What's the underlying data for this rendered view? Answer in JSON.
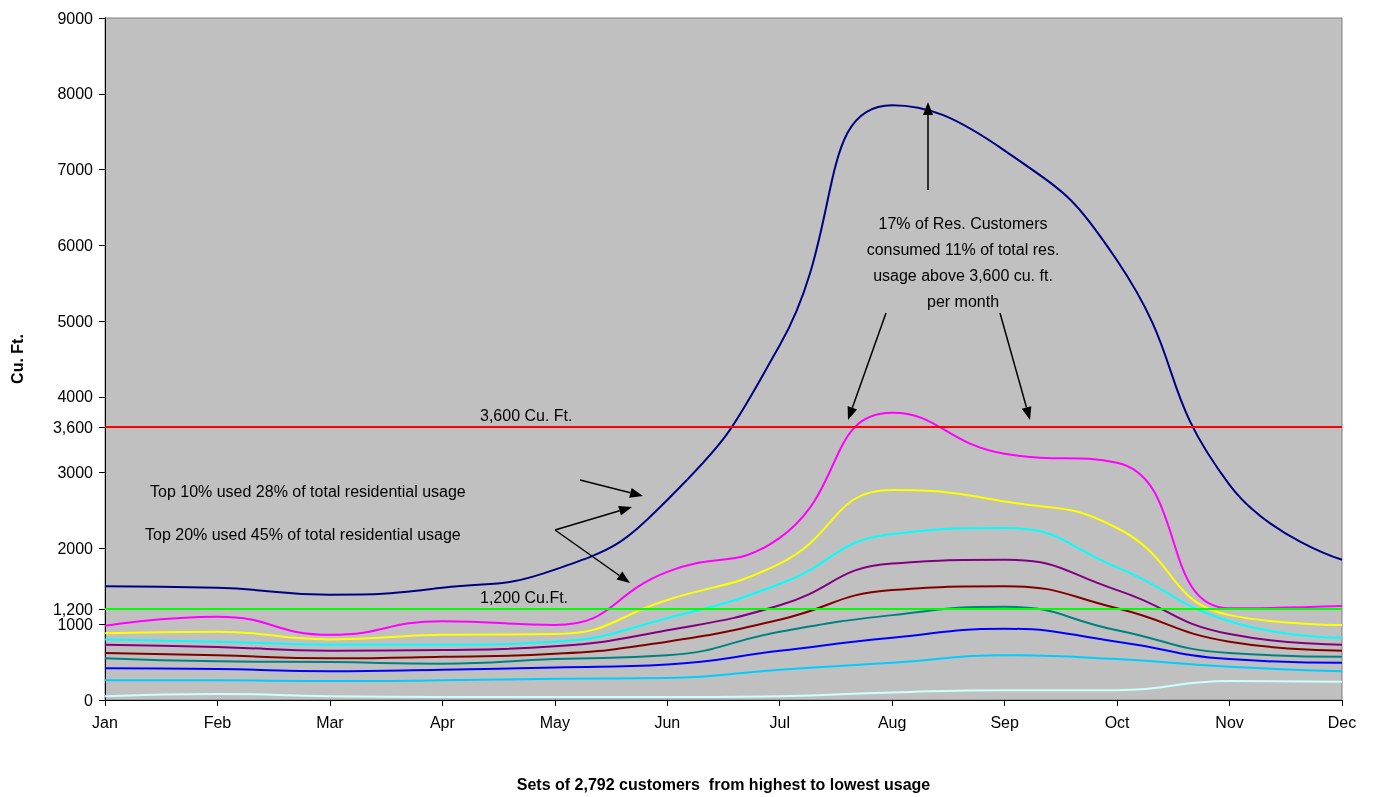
{
  "chart_data": {
    "type": "line",
    "xlabel": "Sets of 2,792 customers  from highest to lowest usage",
    "ylabel": "Cu. Ft.",
    "categories": [
      "Jan",
      "Feb",
      "Mar",
      "Apr",
      "May",
      "Jun",
      "Jul",
      "Aug",
      "Sep",
      "Oct",
      "Nov",
      "Dec"
    ],
    "series": [
      {
        "color": "#000080",
        "values": [
          1500,
          1480,
          1390,
          1480,
          1720,
          2640,
          4680,
          7850,
          7250,
          5800,
          2840,
          1850
        ]
      },
      {
        "color": "#ff00ff",
        "values": [
          980,
          1100,
          860,
          1040,
          990,
          1690,
          2140,
          3790,
          3250,
          3130,
          1210,
          1240
        ]
      },
      {
        "color": "#ffff00",
        "values": [
          880,
          900,
          800,
          860,
          870,
          1320,
          1800,
          2770,
          2620,
          2270,
          1120,
          990
        ]
      },
      {
        "color": "#00ffff",
        "values": [
          800,
          770,
          730,
          730,
          770,
          1080,
          1530,
          2190,
          2270,
          1750,
          1040,
          820
        ]
      },
      {
        "color": "#800080",
        "values": [
          730,
          700,
          650,
          660,
          710,
          920,
          1250,
          1800,
          1850,
          1450,
          870,
          730
        ]
      },
      {
        "color": "#800000",
        "values": [
          620,
          590,
          550,
          570,
          610,
          770,
          1060,
          1450,
          1500,
          1210,
          770,
          650
        ]
      },
      {
        "color": "#008080",
        "values": [
          550,
          510,
          500,
          480,
          540,
          590,
          900,
          1120,
          1230,
          920,
          620,
          570
        ]
      },
      {
        "color": "#0000ff",
        "values": [
          420,
          410,
          380,
          400,
          430,
          470,
          650,
          820,
          940,
          770,
          540,
          490
        ]
      },
      {
        "color": "#00ccff",
        "values": [
          260,
          260,
          250,
          260,
          280,
          290,
          400,
          490,
          590,
          540,
          440,
          380
        ]
      },
      {
        "color": "#ccffff",
        "values": [
          50,
          80,
          50,
          40,
          40,
          40,
          50,
          100,
          130,
          130,
          250,
          240
        ]
      }
    ],
    "ylim": [
      0,
      9000
    ],
    "yticks": [
      0,
      1000,
      {
        "value": 1200,
        "label": "1,200"
      },
      2000,
      3000,
      {
        "value": 3600,
        "label": "3,600"
      },
      4000,
      5000,
      6000,
      7000,
      8000,
      9000
    ],
    "ref_lines": [
      {
        "axis": "y",
        "value": 3600,
        "label": "3,600 Cu. Ft.",
        "color": "#ff0000"
      },
      {
        "axis": "y",
        "value": 1200,
        "label": "1,200 Cu.Ft.",
        "color": "#00ff00"
      }
    ],
    "annotations": [
      "17% of Res. Customers\nconsumed 11% of total res.\nusage above 3,600 cu. ft.\nper month",
      "Top 10% used 28% of total residential usage",
      "Top 20% used 45% of total residential usage"
    ],
    "grid": false,
    "marker": "none",
    "line_style": "solid"
  }
}
